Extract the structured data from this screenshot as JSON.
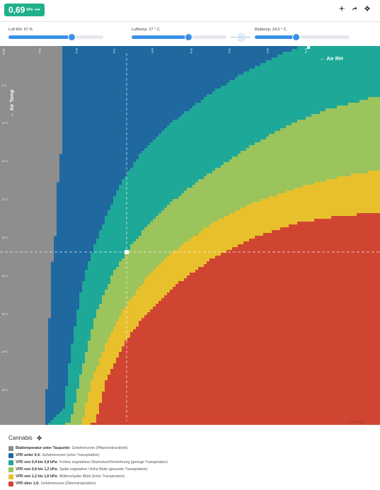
{
  "header": {
    "vpd_value": "0,69",
    "vpd_unit": "kPa",
    "badge_menu": "•••",
    "icons": [
      "crosshair-icon",
      "share-icon",
      "settings-gear-icon"
    ],
    "badge_color": "#1fb08a"
  },
  "controls": {
    "rh_label": "Luft RH: 67 %",
    "rh_percent": 67,
    "air_temp_label": "Lufttemp: 27 ° C",
    "air_temp_percent": 60,
    "leaf_temp_label": "Blattemp: 24,5 ° C",
    "leaf_temp_percent": 44,
    "link_toggle_text": "0 D",
    "accent": "#3a8fe8"
  },
  "chart": {
    "x_axis_label": "← Air RH",
    "y_axis_label": "← Air Temp",
    "x_ticks": [
      "100 %",
      "90 %",
      "80 %",
      "70 %",
      "60 %",
      "50 %",
      "40 %",
      "30 %",
      "20 %"
    ],
    "y_ticks": [
      "5 °C",
      "10 °C",
      "15 °C",
      "20 °C",
      "25 °C",
      "30 °C",
      "35 °C",
      "40 °C",
      "45 °C"
    ],
    "watermark": "vpd-calculator",
    "colors": {
      "below_dew": "#8e8e8e",
      "under_04": "#1f68a0",
      "04_08": "#1ea898",
      "08_12": "#9bc45c",
      "12_16": "#e8c02c",
      "over_16": "#d04532"
    }
  },
  "legend": {
    "title": "Cannabis",
    "items": [
      {
        "color": "#8e8e8e",
        "bold": "Blattemperatur unter Taupunkt:",
        "text": "Gefahrenzone (Pflanzenkrankheit)"
      },
      {
        "color": "#1f68a0",
        "bold": "VPD unter 0,4:",
        "text": "Gefahrenzone (unter Transpiration)"
      },
      {
        "color": "#1ea898",
        "bold": "VPD von 0,4 bis 0,8 kPa:",
        "text": "Frühes vegetatives Wachstum/Vermehrung (geringe Transpiration)"
      },
      {
        "color": "#9bc45c",
        "bold": "VPD von 0,8 bis 1,2 kPa:",
        "text": "Späte vegetative / frühe Blüte (gesunde Transpiration)"
      },
      {
        "color": "#e8c02c",
        "bold": "VPD von 1,2 bis 1,6 kPa:",
        "text": "Mittlere/späte Blüte (hohe Transpiration)"
      },
      {
        "color": "#d04532",
        "bold": "VPD über 1,6:",
        "text": "Gefahrenzone (Übertranspiration)"
      }
    ]
  }
}
